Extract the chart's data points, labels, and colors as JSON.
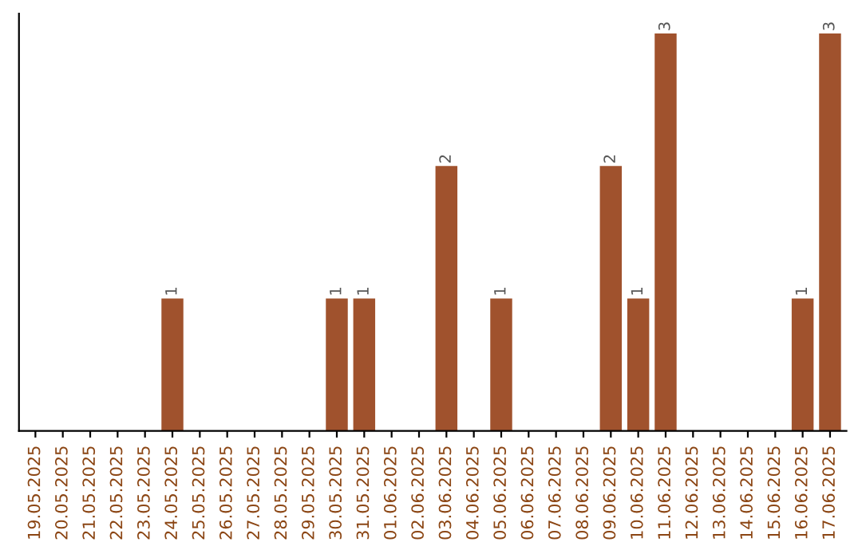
{
  "chart_data": {
    "type": "bar",
    "categories": [
      "19.05.2025",
      "20.05.2025",
      "21.05.2025",
      "22.05.2025",
      "23.05.2025",
      "24.05.2025",
      "25.05.2025",
      "26.05.2025",
      "27.05.2025",
      "28.05.2025",
      "29.05.2025",
      "30.05.2025",
      "31.05.2025",
      "01.06.2025",
      "02.06.2025",
      "03.06.2025",
      "04.06.2025",
      "05.06.2025",
      "06.06.2025",
      "07.06.2025",
      "08.06.2025",
      "09.06.2025",
      "10.06.2025",
      "11.06.2025",
      "12.06.2025",
      "13.06.2025",
      "14.06.2025",
      "15.06.2025",
      "16.06.2025",
      "17.06.2025"
    ],
    "values": [
      0,
      0,
      0,
      0,
      0,
      1,
      0,
      0,
      0,
      0,
      0,
      1,
      1,
      0,
      0,
      2,
      0,
      1,
      0,
      0,
      0,
      2,
      1,
      3,
      0,
      0,
      0,
      0,
      1,
      3
    ],
    "value_labels": [
      null,
      null,
      null,
      null,
      null,
      "1",
      null,
      null,
      null,
      null,
      null,
      "1",
      "1",
      null,
      null,
      "2",
      null,
      "1",
      null,
      null,
      null,
      "2",
      "1",
      "3",
      null,
      null,
      null,
      null,
      "1",
      "3"
    ],
    "color": "#a0522d",
    "tick_labels": "x",
    "grid": false,
    "legend": false
  }
}
